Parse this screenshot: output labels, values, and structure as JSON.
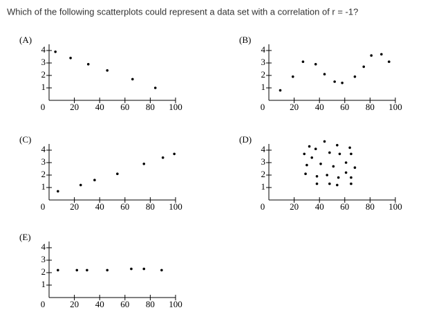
{
  "question": "Which of the following scatterplots could represent a data set with a correlation of r = -1?",
  "chart_data": [
    {
      "type": "scatter",
      "title": "(A)",
      "xlim": [
        0,
        100
      ],
      "ylim": [
        0,
        4.5
      ],
      "xticks": [
        0,
        20,
        40,
        60,
        80,
        100
      ],
      "yticks": [
        1,
        2,
        3,
        4
      ],
      "color": "#000000",
      "x": [
        5,
        17,
        31,
        46,
        66,
        84
      ],
      "values": [
        3.9,
        3.4,
        2.9,
        2.4,
        1.7,
        1.0
      ]
    },
    {
      "type": "scatter",
      "title": "(B)",
      "xlim": [
        0,
        100
      ],
      "ylim": [
        0,
        4.5
      ],
      "xticks": [
        0,
        20,
        40,
        60,
        80,
        100
      ],
      "yticks": [
        1,
        2,
        3,
        4
      ],
      "color": "#000000",
      "x": [
        9,
        19,
        27,
        37,
        44,
        52,
        58,
        68,
        75,
        81,
        89,
        95
      ],
      "values": [
        0.8,
        1.9,
        3.1,
        2.9,
        2.1,
        1.5,
        1.4,
        1.9,
        2.7,
        3.6,
        3.7,
        3.1
      ]
    },
    {
      "type": "scatter",
      "title": "(C)",
      "xlim": [
        0,
        100
      ],
      "ylim": [
        0,
        4.5
      ],
      "xticks": [
        0,
        20,
        40,
        60,
        80,
        100
      ],
      "yticks": [
        1,
        2,
        3,
        4
      ],
      "color": "#000000",
      "x": [
        7,
        25,
        36,
        54,
        75,
        90,
        99
      ],
      "values": [
        0.7,
        1.2,
        1.6,
        2.1,
        2.9,
        3.4,
        3.7
      ]
    },
    {
      "type": "scatter",
      "title": "(D)",
      "xlim": [
        0,
        100
      ],
      "ylim": [
        0,
        4.5
      ],
      "xticks": [
        0,
        20,
        40,
        60,
        80,
        100
      ],
      "yticks": [
        1,
        2,
        3,
        4
      ],
      "color": "#000000",
      "x": [
        32,
        37,
        44,
        54,
        64,
        28,
        34,
        48,
        56,
        65,
        30,
        41,
        51,
        61,
        68,
        29,
        38,
        46,
        55,
        61,
        65,
        38,
        48,
        54,
        65
      ],
      "values": [
        4.3,
        4.1,
        4.7,
        4.4,
        4.2,
        3.7,
        3.4,
        3.8,
        3.7,
        3.7,
        2.8,
        2.9,
        2.7,
        3.0,
        2.6,
        2.1,
        1.9,
        2.0,
        1.8,
        2.2,
        1.8,
        1.3,
        1.3,
        1.2,
        1.3
      ]
    },
    {
      "type": "scatter",
      "title": "(E)",
      "xlim": [
        0,
        100
      ],
      "ylim": [
        0,
        4.5
      ],
      "xticks": [
        0,
        20,
        40,
        60,
        80,
        100
      ],
      "yticks": [
        1,
        2,
        3,
        4
      ],
      "color": "#000000",
      "x": [
        7,
        22,
        30,
        46,
        65,
        75,
        89
      ],
      "values": [
        2.2,
        2.2,
        2.2,
        2.2,
        2.3,
        2.3,
        2.2
      ]
    }
  ]
}
